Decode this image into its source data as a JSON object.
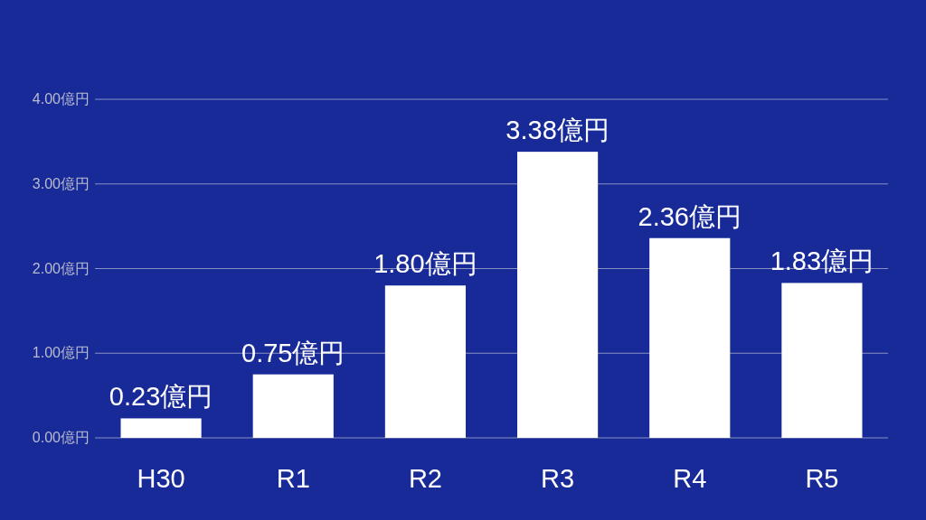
{
  "chart_data": {
    "type": "bar",
    "categories": [
      "H30",
      "R1",
      "R2",
      "R3",
      "R4",
      "R5"
    ],
    "values": [
      0.23,
      0.75,
      1.8,
      3.38,
      2.36,
      1.83
    ],
    "value_labels": [
      "0.23億円",
      "0.75億円",
      "1.80億円",
      "3.38億円",
      "2.36億円",
      "1.83億円"
    ],
    "color": "#ffffff",
    "ylim": [
      0,
      4
    ],
    "yticks": [
      {
        "value": 0,
        "label": "0.00億円"
      },
      {
        "value": 1,
        "label": "1.00億円"
      },
      {
        "value": 2,
        "label": "2.00億円"
      },
      {
        "value": 3,
        "label": "3.00億円"
      },
      {
        "value": 4,
        "label": "4.00億円"
      }
    ],
    "grid": "y"
  }
}
